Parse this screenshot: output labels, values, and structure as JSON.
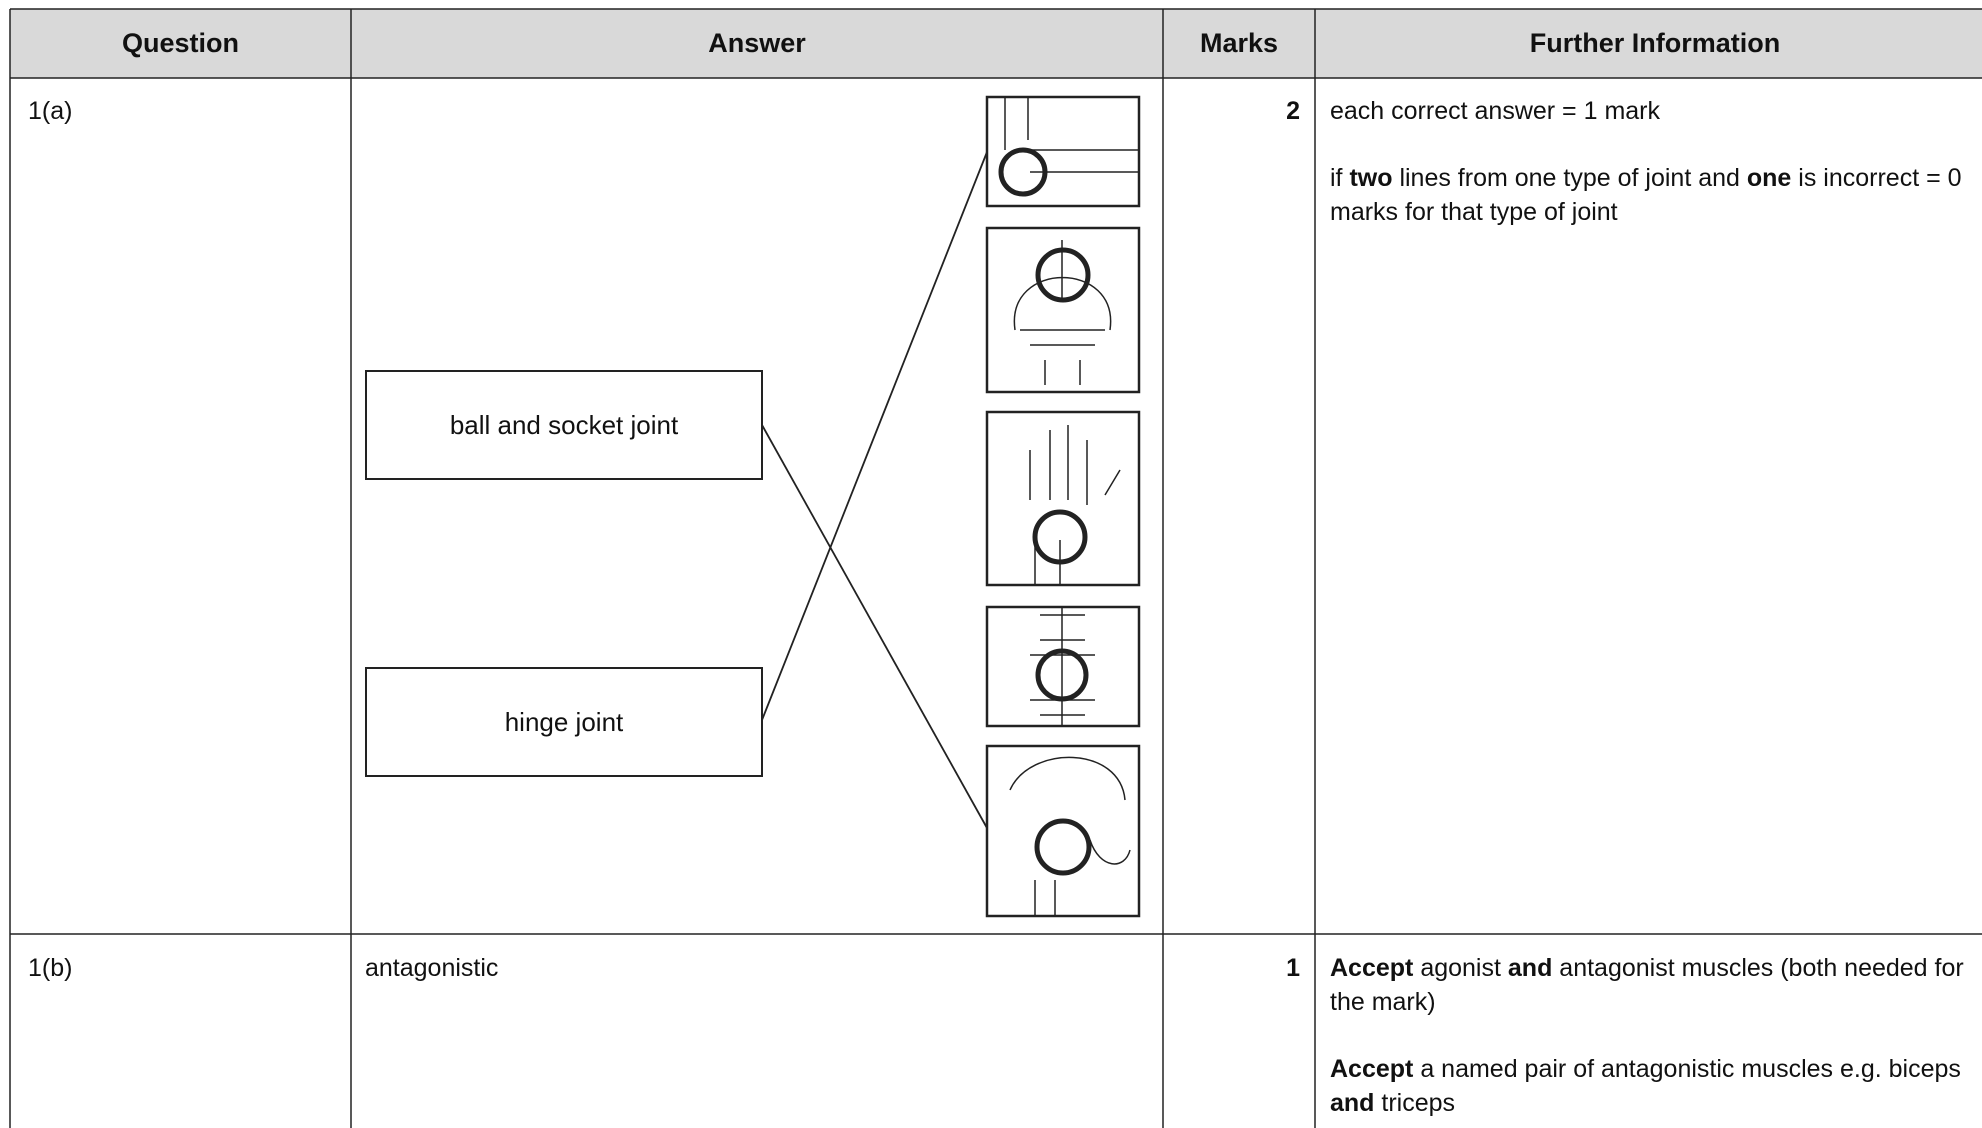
{
  "table": {
    "headers": [
      "Question",
      "Answer",
      "Marks",
      "Further Information"
    ],
    "rows": [
      {
        "question": "1(a)",
        "answer": {
          "left_labels": [
            "ball and socket joint",
            "hinge joint"
          ]
        },
        "marks": "2",
        "further": [
          [
            "each correct answer = 1 mark"
          ],
          [
            "if ",
            {
              "bold": "two"
            },
            " lines from one type of joint and ",
            {
              "bold": "one"
            },
            " is incorrect = 0 marks for that type of joint"
          ]
        ]
      },
      {
        "question": "1(b)",
        "answer": "antagonistic",
        "marks": "1",
        "further": [
          [
            {
              "bold": "Accept"
            },
            " agonist ",
            {
              "bold": "and"
            },
            " antagonist muscles (both needed for the mark)"
          ],
          [
            {
              "bold": "Accept"
            },
            " a named pair of antagonistic muscles e.g. biceps ",
            {
              "bold": "and"
            },
            " triceps"
          ]
        ]
      }
    ]
  }
}
